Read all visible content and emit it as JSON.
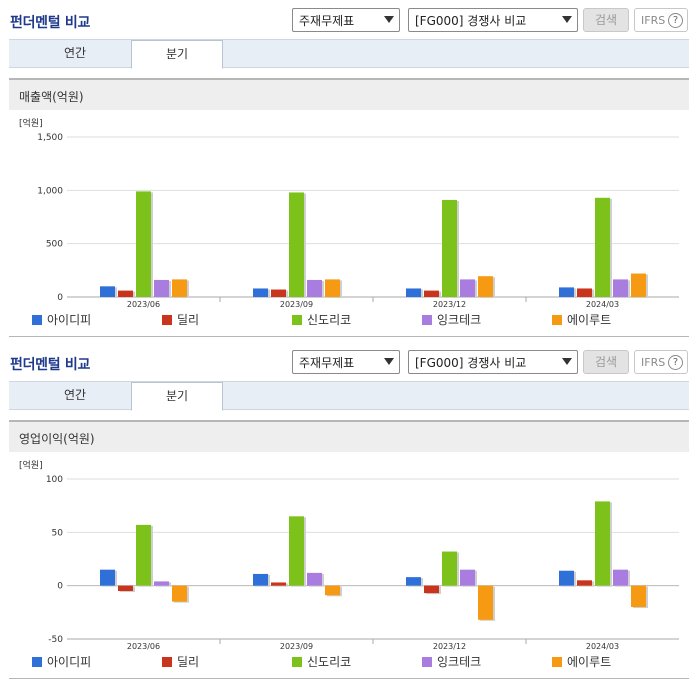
{
  "panels": [
    {
      "title": "펀더멘털 비교",
      "select_statement": "주재무제표",
      "select_peer": "[FG000] 경쟁사 비교",
      "search_label": "검색",
      "ifrs_label": "IFRS",
      "help_label": "?",
      "tabs": [
        "연간",
        "분기"
      ],
      "active_tab": 1,
      "metric_label": "매출액(억원)"
    },
    {
      "title": "펀더멘털 비교",
      "select_statement": "주재무제표",
      "select_peer": "[FG000] 경쟁사 비교",
      "search_label": "검색",
      "ifrs_label": "IFRS",
      "help_label": "?",
      "tabs": [
        "연간",
        "분기"
      ],
      "active_tab": 1,
      "metric_label": "영업이익(억원)"
    }
  ],
  "colors": {
    "아이디피": "#2f6fd8",
    "딜리": "#c8341c",
    "신도리코": "#7cc21a",
    "잉크테크": "#a97de0",
    "에이루트": "#f59a12"
  },
  "chart_data": [
    {
      "type": "bar",
      "unit_label": "[억원]",
      "categories": [
        "2023/06",
        "2023/09",
        "2023/12",
        "2024/03"
      ],
      "ylim": [
        0,
        1500
      ],
      "yticks": [
        0,
        500,
        1000,
        1500
      ],
      "ytick_labels": [
        "0",
        "500",
        "1,000",
        "1,500"
      ],
      "legend": "bottom",
      "series": [
        {
          "name": "아이디피",
          "values": [
            100,
            80,
            80,
            90
          ]
        },
        {
          "name": "딜리",
          "values": [
            60,
            70,
            60,
            80
          ]
        },
        {
          "name": "신도리코",
          "values": [
            990,
            980,
            910,
            930
          ]
        },
        {
          "name": "잉크테크",
          "values": [
            160,
            160,
            165,
            165
          ]
        },
        {
          "name": "에이루트",
          "values": [
            165,
            165,
            195,
            220
          ]
        }
      ]
    },
    {
      "type": "bar",
      "unit_label": "[억원]",
      "categories": [
        "2023/06",
        "2023/09",
        "2023/12",
        "2024/03"
      ],
      "ylim": [
        -50,
        100
      ],
      "yticks": [
        -50,
        0,
        50,
        100
      ],
      "ytick_labels": [
        "-50",
        "0",
        "50",
        "100"
      ],
      "legend": "bottom",
      "series": [
        {
          "name": "아이디피",
          "values": [
            15,
            11,
            8,
            14
          ]
        },
        {
          "name": "딜리",
          "values": [
            -5,
            3,
            -7,
            5
          ]
        },
        {
          "name": "신도리코",
          "values": [
            57,
            65,
            32,
            79
          ]
        },
        {
          "name": "잉크테크",
          "values": [
            4,
            12,
            15,
            15
          ]
        },
        {
          "name": "에이루트",
          "values": [
            -15,
            -9,
            -32,
            -20
          ]
        }
      ]
    }
  ]
}
